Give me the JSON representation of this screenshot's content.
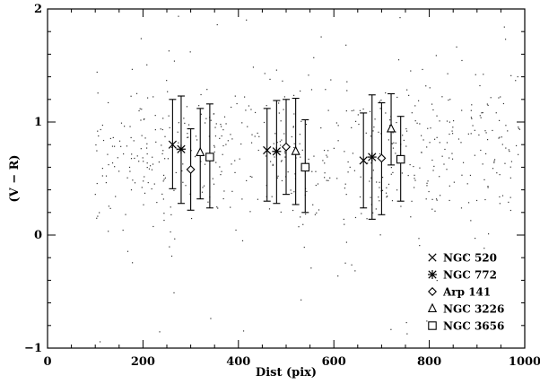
{
  "chart_data": {
    "type": "scatter",
    "title": "",
    "xlabel": "Dist (pix)",
    "ylabel": "(V − R)",
    "xlim": [
      0,
      1000
    ],
    "ylim": [
      -1,
      2
    ],
    "xticks": [
      0,
      200,
      400,
      600,
      800,
      1000
    ],
    "yticks": [
      -1,
      0,
      1,
      2
    ],
    "xtick_labels": [
      "0",
      "200",
      "400",
      "600",
      "800",
      "1000"
    ],
    "ytick_labels": [
      "−1",
      "0",
      "1",
      "2"
    ],
    "grid": false,
    "legend_position": "bottom-right",
    "background_points": {
      "description_marker": "small dots",
      "x_range": [
        100,
        990
      ],
      "y_center": 0.72,
      "count": 620
    },
    "series": [
      {
        "name": "NGC 520",
        "marker": "cross",
        "points": [
          {
            "x": 262,
            "y": 0.8,
            "err_low": 0.41,
            "err_high": 1.2
          },
          {
            "x": 460,
            "y": 0.75,
            "err_low": 0.3,
            "err_high": 1.12
          },
          {
            "x": 662,
            "y": 0.66,
            "err_low": 0.24,
            "err_high": 1.08
          }
        ]
      },
      {
        "name": "NGC 772",
        "marker": "asterisk",
        "points": [
          {
            "x": 280,
            "y": 0.76,
            "err_low": 0.28,
            "err_high": 1.23
          },
          {
            "x": 480,
            "y": 0.74,
            "err_low": 0.28,
            "err_high": 1.19
          },
          {
            "x": 680,
            "y": 0.69,
            "err_low": 0.14,
            "err_high": 1.24
          }
        ]
      },
      {
        "name": "Arp 141",
        "marker": "diamond",
        "points": [
          {
            "x": 300,
            "y": 0.58,
            "err_low": 0.22,
            "err_high": 0.94
          },
          {
            "x": 500,
            "y": 0.78,
            "err_low": 0.36,
            "err_high": 1.2
          },
          {
            "x": 700,
            "y": 0.68,
            "err_low": 0.18,
            "err_high": 1.17
          }
        ]
      },
      {
        "name": "NGC 3226",
        "marker": "triangle",
        "points": [
          {
            "x": 320,
            "y": 0.73,
            "err_low": 0.32,
            "err_high": 1.12
          },
          {
            "x": 520,
            "y": 0.74,
            "err_low": 0.27,
            "err_high": 1.21
          },
          {
            "x": 720,
            "y": 0.94,
            "err_low": 0.62,
            "err_high": 1.25
          }
        ]
      },
      {
        "name": "NGC 3656",
        "marker": "square",
        "points": [
          {
            "x": 340,
            "y": 0.69,
            "err_low": 0.24,
            "err_high": 1.16
          },
          {
            "x": 540,
            "y": 0.6,
            "err_low": 0.2,
            "err_high": 1.02
          },
          {
            "x": 740,
            "y": 0.67,
            "err_low": 0.3,
            "err_high": 1.05
          }
        ]
      }
    ]
  }
}
